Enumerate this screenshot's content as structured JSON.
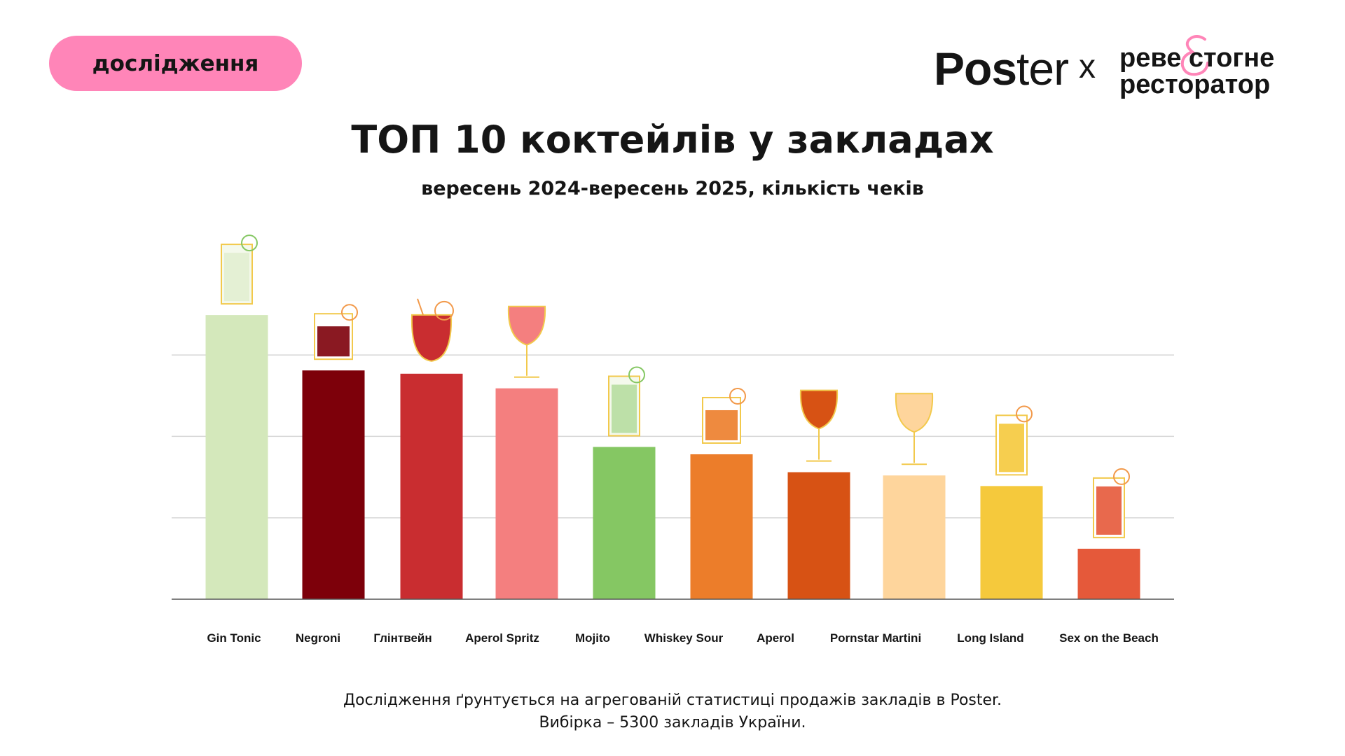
{
  "badge": "дослідження",
  "logos": {
    "poster": [
      "Pos",
      "ter"
    ],
    "separator": "x",
    "partner_line1": "реве стогне",
    "partner_line2": "ресторатор",
    "partner_amp": "&"
  },
  "chart_data": {
    "type": "bar",
    "title": "ТОП 10 коктейлів у закладах",
    "subtitle": "вересень 2024-вересень 2025, кількість чеків",
    "categories": [
      "Gin Tonic",
      "Negroni",
      "Глінтвейн",
      "Aperol Spritz",
      "Mojito",
      "Whiskey Sour",
      "Aperol",
      "Pornstar Martini",
      "Long Island",
      "Sex on the Beach"
    ],
    "values": [
      3.49,
      2.81,
      2.77,
      2.59,
      1.87,
      1.78,
      1.56,
      1.52,
      1.39,
      0.62
    ],
    "colors": [
      "#d4e8bb",
      "#7d000a",
      "#c92d30",
      "#f47f7f",
      "#85c763",
      "#ec7d2a",
      "#d75214",
      "#fed59c",
      "#f5c93c",
      "#e5593a"
    ],
    "ylim": [
      0,
      4
    ],
    "gridlines": [
      1,
      2,
      3
    ],
    "grid": true,
    "y_tick_labels_shown": false,
    "icons": [
      "gin-tonic-glass-icon",
      "negroni-glass-icon",
      "mulled-wine-glass-icon",
      "aperol-spritz-glass-icon",
      "mojito-glass-icon",
      "whiskey-sour-glass-icon",
      "aperol-glass-icon",
      "pornstar-martini-glass-icon",
      "long-island-glass-icon",
      "sex-on-the-beach-glass-icon"
    ]
  },
  "footer": {
    "line1": "Дослідження ґрунтується на агрегованій статистиці продажів закладів в Poster.",
    "line2": "Вибірка – 5300 закладів України."
  }
}
